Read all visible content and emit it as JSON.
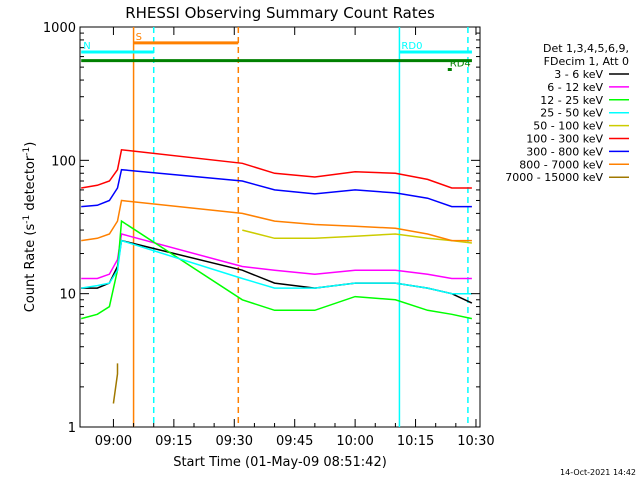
{
  "chart_data": {
    "type": "line",
    "title": "RHESSI Observing Summary Count Rates",
    "xlabel": "Start Time (01-May-09 08:51:42)",
    "ylabel_main": "Count Rate (s",
    "ylabel_sup1": "-1",
    "ylabel_mid": " detector",
    "ylabel_sup2": "-1",
    "ylabel_end": ")",
    "y_scale": "log",
    "ylim": [
      1,
      1000
    ],
    "xlim": [
      "08:51:42",
      "10:31:00"
    ],
    "x_ticks": [
      "09:00",
      "09:15",
      "09:30",
      "09:45",
      "10:00",
      "10:15",
      "10:30"
    ],
    "y_ticks": [
      {
        "value": 1,
        "label": "1"
      },
      {
        "value": 10,
        "label": "10"
      },
      {
        "value": 100,
        "label": "100"
      },
      {
        "value": 1000,
        "label": "1000"
      }
    ],
    "grid": false,
    "legend": {
      "placement": "right",
      "header": [
        "Det 1,3,4,5,6,9,",
        "FDecim 1, Att 0"
      ]
    },
    "series": [
      {
        "name": "3 - 6 keV",
        "color": "#000000",
        "x": [
          "08:52",
          "08:56",
          "08:59",
          "09:01",
          "09:02",
          "09:32",
          "09:40",
          "09:50",
          "10:00",
          "10:10",
          "10:18",
          "10:24",
          "10:29"
        ],
        "y": [
          11,
          11,
          12,
          16,
          25,
          15,
          12,
          11,
          12,
          12,
          11,
          10,
          8.5
        ]
      },
      {
        "name": "6 - 12 keV",
        "color": "#ff00ff",
        "x": [
          "08:52",
          "08:56",
          "08:59",
          "09:01",
          "09:02",
          "09:32",
          "09:40",
          "09:50",
          "10:00",
          "10:10",
          "10:18",
          "10:24",
          "10:29"
        ],
        "y": [
          13,
          13,
          14,
          18,
          28,
          16,
          15,
          14,
          15,
          15,
          14,
          13,
          13
        ]
      },
      {
        "name": "12 - 25 keV",
        "color": "#00ff00",
        "x": [
          "08:52",
          "08:56",
          "08:59",
          "09:01",
          "09:02",
          "09:32",
          "09:40",
          "09:50",
          "10:00",
          "10:10",
          "10:18",
          "10:24",
          "10:29"
        ],
        "y": [
          6.5,
          7,
          8,
          15,
          35,
          9,
          7.5,
          7.5,
          9.5,
          9,
          7.5,
          7,
          6.5
        ]
      },
      {
        "name": "25 - 50 keV",
        "color": "#00ffff",
        "x": [
          "08:52",
          "08:56",
          "08:59",
          "09:01",
          "09:02",
          "09:32",
          "09:40",
          "09:50",
          "10:00",
          "10:10",
          "10:18",
          "10:24",
          "10:29"
        ],
        "y": [
          11,
          11.5,
          12,
          15,
          25,
          13,
          11,
          11,
          12,
          12,
          11,
          10,
          10
        ]
      },
      {
        "name": "50 - 100 keV",
        "color": "#cccc00",
        "x": [
          "08:52",
          "08:56",
          "08:59",
          "09:01",
          "09:02",
          "09:32",
          "09:40",
          "09:50",
          "10:00",
          "10:10",
          "10:18",
          "10:24",
          "10:29"
        ],
        "y": [
          null,
          null,
          null,
          null,
          null,
          30,
          26,
          26,
          27,
          28,
          26,
          25,
          24
        ]
      },
      {
        "name": "100 - 300 keV",
        "color": "#ff0000",
        "x": [
          "08:52",
          "08:56",
          "08:59",
          "09:01",
          "09:02",
          "09:32",
          "09:40",
          "09:50",
          "10:00",
          "10:10",
          "10:18",
          "10:24",
          "10:29"
        ],
        "y": [
          62,
          65,
          70,
          85,
          120,
          95,
          80,
          75,
          82,
          80,
          72,
          62,
          62
        ]
      },
      {
        "name": "300 - 800 keV",
        "color": "#0000ff",
        "x": [
          "08:52",
          "08:56",
          "08:59",
          "09:01",
          "09:02",
          "09:32",
          "09:40",
          "09:50",
          "10:00",
          "10:10",
          "10:18",
          "10:24",
          "10:29"
        ],
        "y": [
          45,
          46,
          50,
          62,
          85,
          70,
          60,
          56,
          60,
          57,
          52,
          45,
          45
        ]
      },
      {
        "name": "800 - 7000 keV",
        "color": "#ff8000",
        "x": [
          "08:52",
          "08:56",
          "08:59",
          "09:01",
          "09:02",
          "09:32",
          "09:40",
          "09:50",
          "10:00",
          "10:10",
          "10:18",
          "10:24",
          "10:29"
        ],
        "y": [
          25,
          26,
          28,
          35,
          50,
          40,
          35,
          33,
          32,
          31,
          28,
          25,
          25
        ]
      },
      {
        "name": "7000 - 15000 keV",
        "color": "#a07800",
        "x": [
          "09:00",
          "09:01",
          "09:01"
        ],
        "y": [
          1.5,
          2.5,
          3
        ]
      }
    ],
    "markers": [
      {
        "time": "09:05",
        "style": "solid",
        "color": "#ff8000"
      },
      {
        "time": "09:10",
        "style": "dashed",
        "color": "#00ffff"
      },
      {
        "time": "09:31",
        "style": "dashed",
        "color": "#ff8000"
      },
      {
        "time": "10:11",
        "style": "solid",
        "color": "#00ffff"
      },
      {
        "time": "10:28",
        "style": "dashed",
        "color": "#00ffff"
      }
    ],
    "bands": [
      {
        "label": "S",
        "color": "#ff8000",
        "start": "09:05",
        "end": "09:31",
        "value": 760
      },
      {
        "label": "N",
        "color": "#00ffff",
        "start": "08:52",
        "end": "09:10",
        "value": 650
      },
      {
        "label": "",
        "color": "#008000",
        "start": "08:52",
        "end": "10:29",
        "value": 560
      },
      {
        "label": "RD0",
        "color": "#00ffff",
        "start": "10:11",
        "end": "10:29",
        "value": 650
      },
      {
        "label": "RD4",
        "color": "#008000",
        "start": "10:23",
        "end": "10:24",
        "value": 480
      }
    ]
  },
  "timestamp": "14-Oct-2021 14:42"
}
